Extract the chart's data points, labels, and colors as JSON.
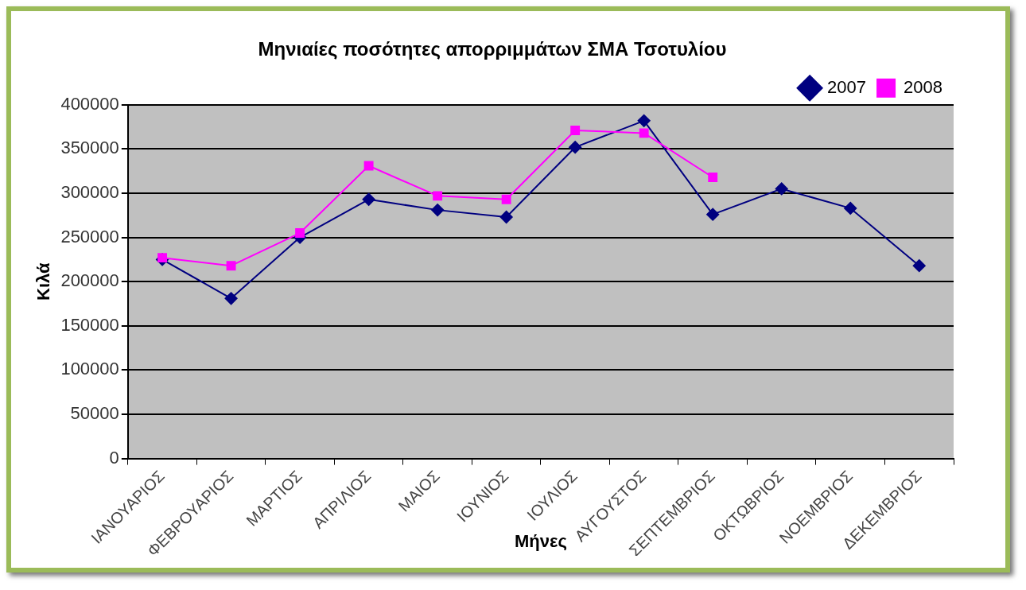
{
  "chart_data": {
    "type": "line",
    "title": "Μηνιαίες ποσότητες απορριμμάτων ΣΜΑ Τσοτυλίου",
    "xlabel": "Μήνες",
    "ylabel": "Κιλά",
    "categories": [
      "ΙΑΝΟΥΑΡΙΟΣ",
      "ΦΕΒΡΟΥΑΡΙΟΣ",
      "ΜΑΡΤΙΟΣ",
      "ΑΠΡΙΛΙΟΣ",
      "ΜΑΙΟΣ",
      "ΙΟΥΝΙΟΣ",
      "ΙΟΥΛΙΟΣ",
      "ΑΥΓΟΥΣΤΟΣ",
      "ΣΕΠΤΕΜΒΡΙΟΣ",
      "ΟΚΤΩΒΡΙΟΣ",
      "ΝΟΕΜΒΡΙΟΣ",
      "ΔΕΚΕΜΒΡΙΟΣ"
    ],
    "series": [
      {
        "name": "2007",
        "color": "#000080",
        "marker": "diamond",
        "values": [
          225000,
          181000,
          250000,
          293000,
          281000,
          273000,
          352000,
          382000,
          276000,
          305000,
          283000,
          218000
        ]
      },
      {
        "name": "2008",
        "color": "#ff00ff",
        "marker": "square",
        "values": [
          227000,
          218000,
          255000,
          331000,
          297000,
          293000,
          371000,
          368000,
          318000,
          null,
          null,
          null
        ]
      }
    ],
    "ylim": [
      0,
      400000
    ],
    "yticks": [
      0,
      50000,
      100000,
      150000,
      200000,
      250000,
      300000,
      350000,
      400000
    ],
    "grid": "y",
    "legend": "top right",
    "line_style": "solid"
  }
}
